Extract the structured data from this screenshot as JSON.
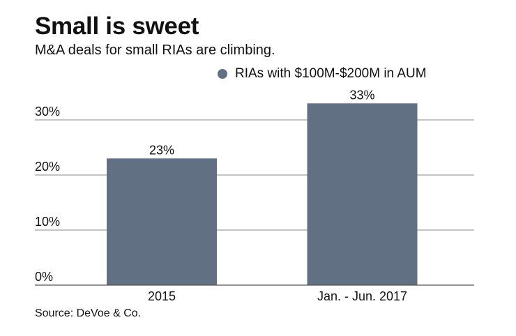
{
  "chart_data": {
    "type": "bar",
    "title": "Small is sweet",
    "subtitle": "M&A deals for small RIAs are climbing.",
    "categories": [
      "2015",
      "Jan. - Jun. 2017"
    ],
    "series": [
      {
        "name": "RIAs with $100M-$200M in AUM",
        "values": [
          23,
          33
        ],
        "color": "#627083"
      }
    ],
    "data_labels": [
      "23%",
      "33%"
    ],
    "yticks": [
      0,
      10,
      20,
      30
    ],
    "ytick_labels": [
      "0%",
      "10%",
      "20%",
      "30%"
    ],
    "ylim": [
      0,
      35
    ],
    "grid": true,
    "legend": "top-right",
    "xlabel": "",
    "ylabel": "",
    "source": "Source: DeVoe & Co."
  }
}
